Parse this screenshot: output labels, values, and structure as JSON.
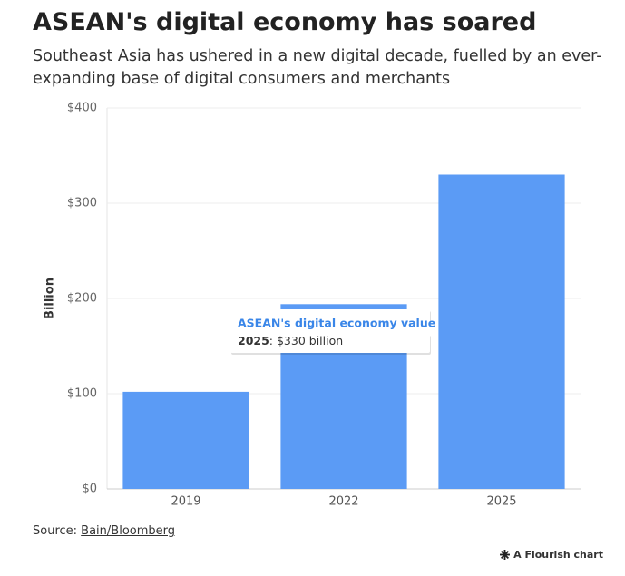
{
  "chart_data": {
    "type": "bar",
    "title": "ASEAN's digital economy has soared",
    "subtitle": "Southeast Asia has ushered in a new digital decade, fuelled by an ever-expanding base of digital consumers and merchants",
    "y_label": "Billion",
    "categories": [
      "2019",
      "2022",
      "2025"
    ],
    "values": [
      102,
      194,
      330
    ],
    "color": "#5b9bf5",
    "ylim": [
      0,
      400
    ],
    "yticks": [
      {
        "value": 0,
        "label": "$0"
      },
      {
        "value": 100,
        "label": "$100"
      },
      {
        "value": 200,
        "label": "$200"
      },
      {
        "value": 300,
        "label": "$300"
      },
      {
        "value": 400,
        "label": "$400"
      }
    ],
    "grid": true,
    "tooltip": {
      "title": "ASEAN's digital economy value",
      "value_text": ": $330 billion"
    },
    "source_label": "Source:",
    "source": "Bain/Bloomberg",
    "credit": "A Flourish chart"
  }
}
